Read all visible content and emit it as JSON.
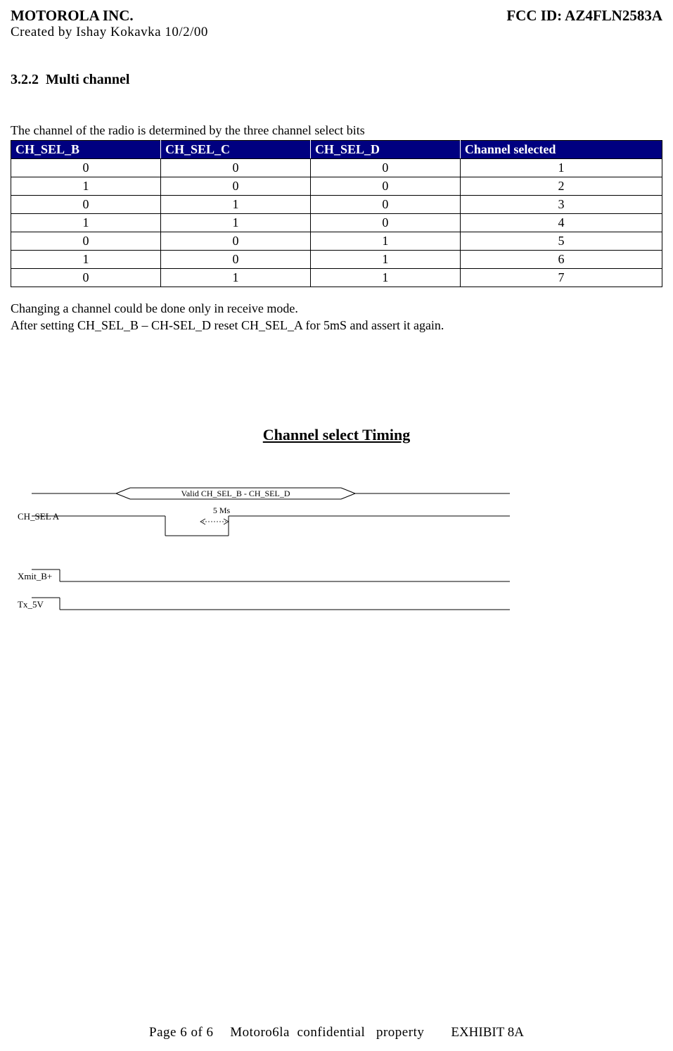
{
  "header": {
    "company": "MOTOROLA INC.",
    "created_by": "Created   by   Ishay  Kokavka   10/2/00",
    "fcc_id": "FCC ID: AZ4FLN2583A"
  },
  "section": {
    "number": "3.2.2",
    "title": "Multi channel"
  },
  "intro": "The channel of the radio is determined by the three channel select bits",
  "table": {
    "headers": [
      "CH_SEL_B",
      "CH_SEL_C",
      "CH_SEL_D",
      "Channel selected"
    ],
    "header_bg": "#000080",
    "header_color": "#ffffff",
    "border_color": "#000000",
    "rows": [
      [
        "0",
        "0",
        "0",
        "1"
      ],
      [
        "1",
        "0",
        "0",
        "2"
      ],
      [
        "0",
        "1",
        "0",
        "3"
      ],
      [
        "1",
        "1",
        "0",
        "4"
      ],
      [
        "0",
        "0",
        "1",
        "5"
      ],
      [
        "1",
        "0",
        "1",
        "6"
      ],
      [
        "0",
        "1",
        "1",
        "7"
      ]
    ]
  },
  "body": {
    "line1": "Changing a channel could be done only in receive mode.",
    "line2": "After setting CH_SEL_B – CH-SEL_D  reset CH_SEL_A for 5mS and assert it again."
  },
  "diagram": {
    "title": "Channel select Timing",
    "valid_label": "Valid CH_SEL_B - CH_SEL_D",
    "time_label": "5  Ms",
    "signals": {
      "ch_sel_a": "CH_SEL  A",
      "xmit": "Xmit_B+",
      "tx": "Tx_5V"
    },
    "stroke_color": "#000000",
    "stroke_width": 1
  },
  "footer": {
    "page": "Page 6 of   6",
    "confidential": "Motorola  confidential   property",
    "exhibit": "EXHIBIT 8A",
    "page_num_overlay": "6"
  }
}
